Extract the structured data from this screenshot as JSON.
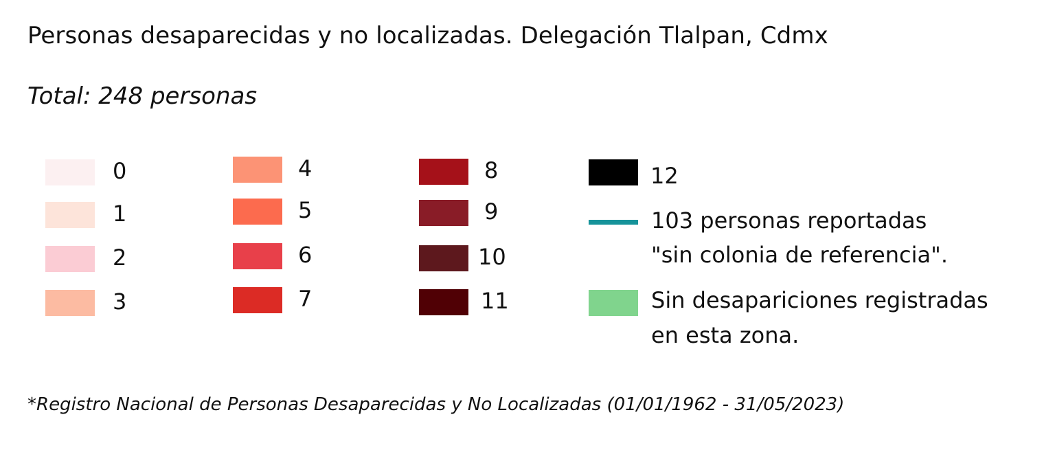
{
  "title": "Personas desaparecidas y no localizadas. Delegación Tlalpan, Cdmx",
  "subtitle": "Total: 248 personas",
  "legend": {
    "scale": [
      {
        "label": "0",
        "color": "#fcf0f1"
      },
      {
        "label": "1",
        "color": "#fde4da"
      },
      {
        "label": "2",
        "color": "#fbccd4"
      },
      {
        "label": "3",
        "color": "#fcbba2"
      },
      {
        "label": "4",
        "color": "#fc9375"
      },
      {
        "label": "5",
        "color": "#fc6b4e"
      },
      {
        "label": "6",
        "color": "#e8404a"
      },
      {
        "label": "7",
        "color": "#dc2b25"
      },
      {
        "label": "8",
        "color": "#a51119"
      },
      {
        "label": "9",
        "color": "#891c27"
      },
      {
        "label": "10",
        "color": "#5d181d"
      },
      {
        "label": "11",
        "color": "#500005"
      },
      {
        "label": "12",
        "color": "#000000"
      }
    ],
    "no_colonia": {
      "line1": "103 personas reportadas",
      "line2": "\"sin colonia de referencia\".",
      "color": "#16939a"
    },
    "no_records": {
      "line1": "Sin desapariciones registradas",
      "line2": "en esta zona.",
      "color": "#80d48d"
    }
  },
  "footnote": "*Registro Nacional de Personas Desaparecidas y No Localizadas (01/01/1962 - 31/05/2023)"
}
